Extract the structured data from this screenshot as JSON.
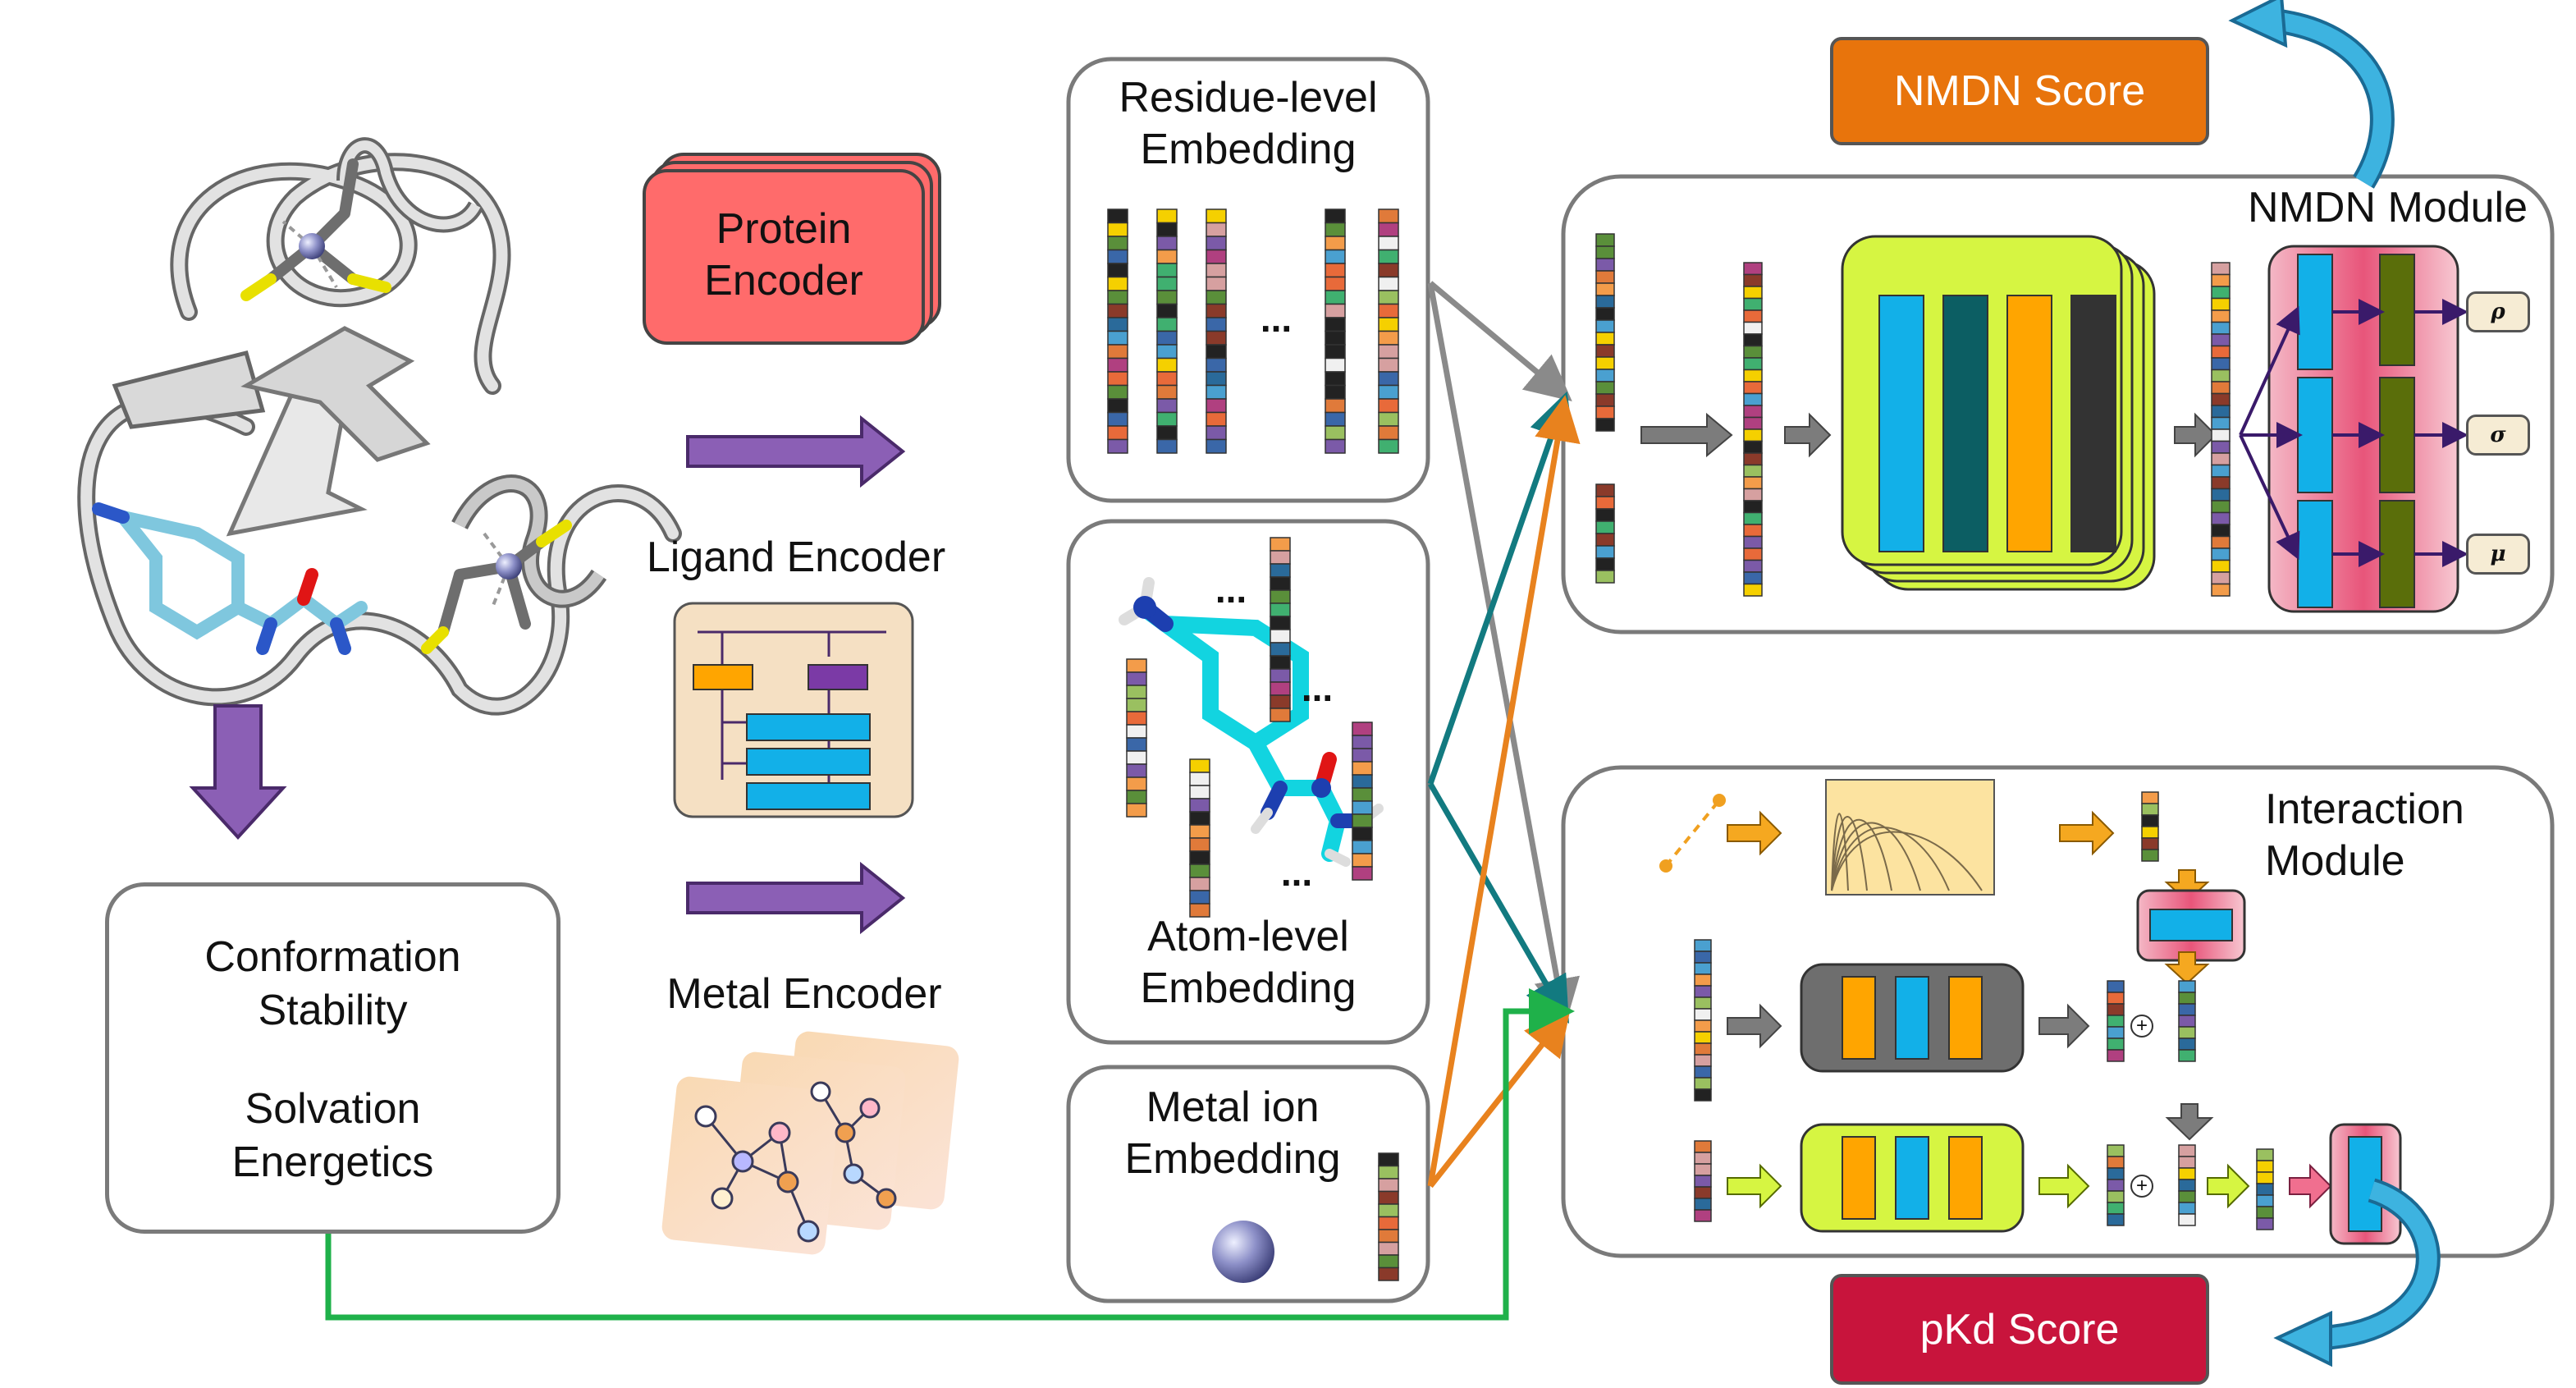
{
  "encoders": {
    "protein": "Protein\nEncoder",
    "ligand": "Ligand Encoder",
    "metal": "Metal Encoder"
  },
  "embeddings": {
    "residue": "Residue-level\nEmbedding",
    "atom": "Atom-level\nEmbedding",
    "metal_ion": "Metal ion\nEmbedding",
    "ellipsis": "..."
  },
  "features": {
    "line1": "Conformation",
    "line2": "Stability",
    "line3": "Solvation",
    "line4": "Energetics"
  },
  "modules": {
    "nmdn": "NMDN Module",
    "interaction": "Interaction\nModule"
  },
  "outputs": {
    "nmdn_score": "NMDN Score",
    "pkd_score": "pKd Score"
  },
  "heads": [
    "ρ",
    "σ",
    "μ"
  ],
  "ops": {
    "plus": "+"
  },
  "colors": {
    "protein_encoder": "#ff6b6b",
    "ligand_encoder_bg": "#f5e0c3",
    "nmdn_score": "#e8740c",
    "pkd_score": "#c8143c",
    "arrow_purple": "#8b5fb5",
    "line_gray": "#8a8a8a",
    "line_teal": "#127a80",
    "line_orange": "#e8821e",
    "line_green": "#1fb14a",
    "lime": "#d6f542",
    "cyan": "#12b0e8",
    "teal_dark": "#0c5e63",
    "orange_block": "#ffa500",
    "dark_block": "#333333",
    "olive": "#5a6e0a",
    "pink": "#f06f8f",
    "curved_arrow": "#2aa6d8"
  }
}
